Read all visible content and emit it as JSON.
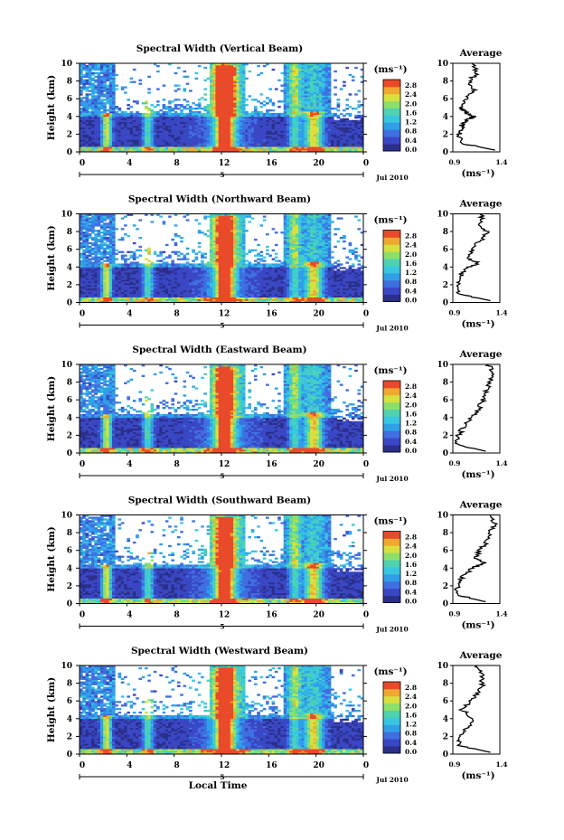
{
  "figure": {
    "x_axis_label": "Local Time",
    "date_label": "Jul 2010",
    "day_label": "5",
    "x_ticks": [
      "0",
      "4",
      "8",
      "12",
      "16",
      "20",
      "0"
    ],
    "y_label": "Height (km)",
    "y_ticks": [
      "0",
      "2",
      "4",
      "6",
      "8",
      "10"
    ],
    "colorbar_unit": "(ms⁻¹)",
    "colorbar_ticks": [
      "0.0",
      "0.4",
      "0.8",
      "1.2",
      "1.6",
      "2.0",
      "2.4",
      "2.8"
    ],
    "avg_title": "Average",
    "avg_x_ticks": [
      "0.9",
      "1.4"
    ],
    "avg_unit": "(ms⁻¹)"
  },
  "colors": {
    "scale": [
      "#2b2f8a",
      "#3a47c4",
      "#3f6fe0",
      "#2fa0e8",
      "#39c6e0",
      "#4fd2b0",
      "#8ce06a",
      "#d8e040",
      "#f0a830",
      "#e84a2a"
    ]
  },
  "chart_data": [
    {
      "type": "heatmap",
      "title": "Spectral Width (Vertical Beam)",
      "xlabel": "Local Time",
      "ylabel": "Height (km)",
      "xlim": [
        0,
        24
      ],
      "ylim": [
        0,
        10
      ],
      "clim": [
        0.0,
        2.8
      ],
      "colorbar_label": "(ms⁻¹)",
      "average_profile": {
        "xlim": [
          0.9,
          1.4
        ],
        "heights": [
          0.2,
          1,
          2,
          2.6,
          3,
          3.6,
          4,
          4.4,
          5,
          6,
          7,
          8,
          9,
          10
        ],
        "values": [
          1.35,
          0.98,
          0.96,
          1.02,
          0.99,
          1.05,
          1.12,
          1.05,
          0.98,
          1.05,
          1.12,
          1.08,
          1.16,
          1.1
        ]
      }
    },
    {
      "type": "heatmap",
      "title": "Spectral Width (Northward Beam)",
      "xlabel": "Local Time",
      "ylabel": "Height (km)",
      "xlim": [
        0,
        24
      ],
      "ylim": [
        0,
        10
      ],
      "clim": [
        0.0,
        2.8
      ],
      "colorbar_label": "(ms⁻¹)",
      "average_profile": {
        "xlim": [
          0.9,
          1.4
        ],
        "heights": [
          0.2,
          1,
          2,
          3,
          3.8,
          4.5,
          5,
          6,
          7,
          8,
          9,
          10
        ],
        "values": [
          1.3,
          0.96,
          0.97,
          0.98,
          1.02,
          1.18,
          1.05,
          1.1,
          1.2,
          1.26,
          1.18,
          1.22
        ]
      }
    },
    {
      "type": "heatmap",
      "title": "Spectral Width (Eastward Beam)",
      "xlabel": "Local Time",
      "ylabel": "Height (km)",
      "xlim": [
        0,
        24
      ],
      "ylim": [
        0,
        10
      ],
      "clim": [
        0.0,
        2.8
      ],
      "colorbar_label": "(ms⁻¹)",
      "average_profile": {
        "xlim": [
          0.9,
          1.4
        ],
        "heights": [
          0.2,
          1,
          2,
          3,
          4,
          5,
          6,
          7,
          8,
          9,
          10
        ],
        "values": [
          1.25,
          0.94,
          0.96,
          1.02,
          1.1,
          1.18,
          1.22,
          1.26,
          1.3,
          1.32,
          1.28
        ]
      }
    },
    {
      "type": "heatmap",
      "title": "Spectral Width (Southward Beam)",
      "xlabel": "Local Time",
      "ylabel": "Height (km)",
      "xlim": [
        0,
        24
      ],
      "ylim": [
        0,
        10
      ],
      "clim": [
        0.0,
        2.8
      ],
      "colorbar_label": "(ms⁻¹)",
      "average_profile": {
        "xlim": [
          0.9,
          1.4
        ],
        "heights": [
          0.2,
          1,
          2,
          3,
          4,
          4.6,
          5,
          6,
          7,
          8,
          9,
          10
        ],
        "values": [
          1.25,
          0.93,
          0.95,
          1.0,
          1.1,
          1.25,
          1.15,
          1.18,
          1.26,
          1.3,
          1.34,
          1.3
        ]
      }
    },
    {
      "type": "heatmap",
      "title": "Spectral Width (Westward Beam)",
      "xlabel": "Local Time",
      "ylabel": "Height (km)",
      "xlim": [
        0,
        24
      ],
      "ylim": [
        0,
        10
      ],
      "clim": [
        0.0,
        2.8
      ],
      "colorbar_label": "(ms⁻¹)",
      "average_profile": {
        "xlim": [
          0.9,
          1.4
        ],
        "heights": [
          0.2,
          1,
          2,
          3,
          4,
          5,
          6,
          7,
          8,
          9,
          10
        ],
        "values": [
          1.3,
          0.96,
          0.98,
          1.05,
          1.12,
          1.0,
          1.1,
          1.18,
          1.22,
          1.2,
          1.16
        ]
      }
    }
  ]
}
